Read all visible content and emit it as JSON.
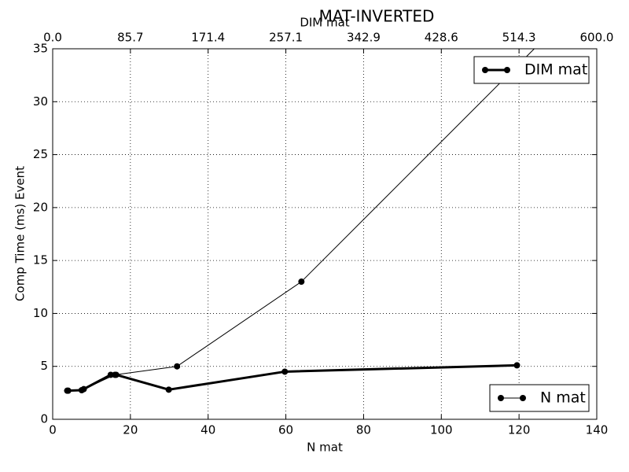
{
  "chart_data": {
    "type": "line",
    "title": "MAT-INVERTED",
    "xlabel": "N mat",
    "x2label": "DIM mat",
    "ylabel": "Comp Time (ms) Event",
    "xlim": [
      0,
      140
    ],
    "xticks": [
      0,
      20,
      40,
      60,
      80,
      100,
      120,
      140
    ],
    "x2lim": [
      0,
      600
    ],
    "x2ticks": [
      {
        "value": 0,
        "label": "0.0"
      },
      {
        "value": 85.714,
        "label": "85.7"
      },
      {
        "value": 171.429,
        "label": "171.4"
      },
      {
        "value": 257.143,
        "label": "257.1"
      },
      {
        "value": 342.857,
        "label": "342.9"
      },
      {
        "value": 428.571,
        "label": "428.6"
      },
      {
        "value": 514.286,
        "label": "514.3"
      },
      {
        "value": 600,
        "label": "600.0"
      }
    ],
    "ylim": [
      0,
      35
    ],
    "yticks": [
      0,
      5,
      10,
      15,
      20,
      25,
      30,
      35
    ],
    "grid": true,
    "series": [
      {
        "name": "DIM mat",
        "color": "#000000",
        "linewidth": 3,
        "xaxis": "x2",
        "legend_loc": "upper right",
        "x": [
          16,
          32,
          64,
          70,
          128,
          256,
          512
        ],
        "values": [
          2.7,
          2.75,
          4.2,
          4.2,
          2.8,
          4.5,
          5.1
        ]
      },
      {
        "name": "N mat",
        "color": "#000000",
        "linewidth": 1,
        "xaxis": "x",
        "legend_loc": "lower right",
        "x": [
          4,
          8,
          16,
          32,
          64,
          128
        ],
        "values": [
          2.7,
          2.85,
          4.2,
          5.0,
          13.0,
          36.5
        ]
      }
    ]
  }
}
